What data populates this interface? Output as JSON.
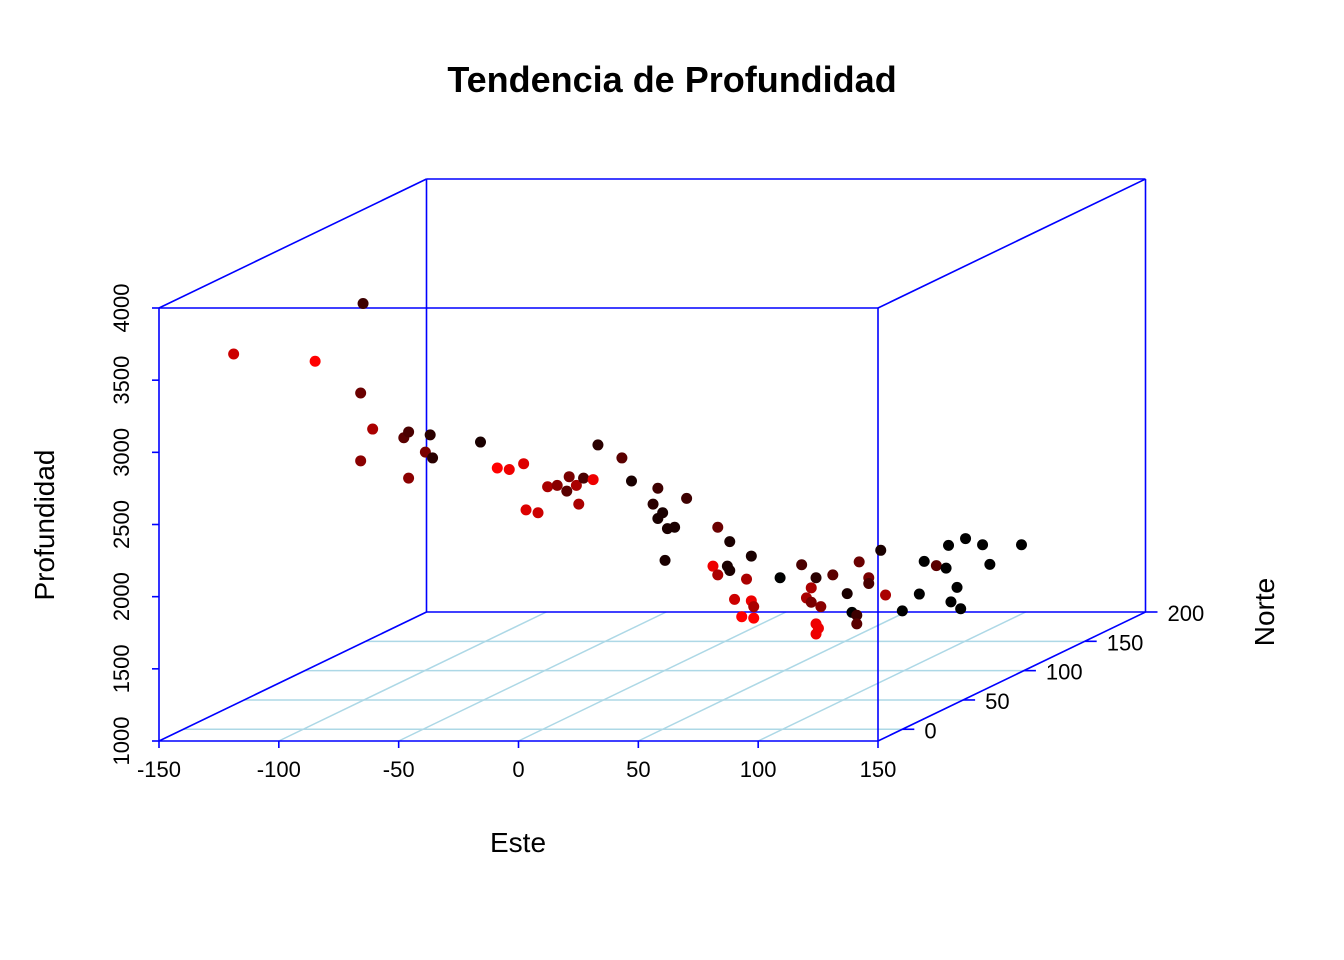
{
  "chart_data": {
    "type": "scatter",
    "title": "Tendencia de Profundidad",
    "xlabel": "Este",
    "ylabel": "Norte",
    "zlabel": "Profundidad",
    "x_ticks": [
      "-150",
      "-100",
      "-50",
      "0",
      "50",
      "100",
      "150"
    ],
    "y_ticks": [
      "0",
      "50",
      "100",
      "150",
      "200"
    ],
    "z_ticks": [
      "1000",
      "1500",
      "2000",
      "2500",
      "3000",
      "3500",
      "4000"
    ],
    "xlim": [
      -150,
      150
    ],
    "ylim": [
      -20,
      200
    ],
    "zlim": [
      1000,
      4000
    ],
    "grid": true,
    "colors": {
      "box": "#0000ff",
      "grid": "#add8e6",
      "points_low": "#000000",
      "points_high": "#ff0000"
    },
    "points": [
      {
        "x": -129,
        "y": 0,
        "z": 3600,
        "c": "#cc0000"
      },
      {
        "x": -95,
        "y": 0,
        "z": 3550,
        "c": "#ff0000"
      },
      {
        "x": -75,
        "y": 0,
        "z": 3950,
        "c": "#3d0000"
      },
      {
        "x": -76,
        "y": 0,
        "z": 3330,
        "c": "#6a0000"
      },
      {
        "x": -71,
        "y": 0,
        "z": 3080,
        "c": "#aa0000"
      },
      {
        "x": -76,
        "y": 0,
        "z": 2860,
        "c": "#8a0000"
      },
      {
        "x": -58,
        "y": 0,
        "z": 3020,
        "c": "#5a0000"
      },
      {
        "x": -56,
        "y": 0,
        "z": 3060,
        "c": "#4a0000"
      },
      {
        "x": -49,
        "y": 0,
        "z": 2920,
        "c": "#7a0000"
      },
      {
        "x": -47,
        "y": 0,
        "z": 3040,
        "c": "#2a0000"
      },
      {
        "x": -46,
        "y": 0,
        "z": 2880,
        "c": "#2a0000"
      },
      {
        "x": -56,
        "y": 0,
        "z": 2740,
        "c": "#8a0000"
      },
      {
        "x": -26,
        "y": 0,
        "z": 2990,
        "c": "#1a0000"
      },
      {
        "x": -19,
        "y": 0,
        "z": 2810,
        "c": "#ff0000"
      },
      {
        "x": -14,
        "y": 0,
        "z": 2800,
        "c": "#ee0000"
      },
      {
        "x": -8,
        "y": 0,
        "z": 2840,
        "c": "#dd0000"
      },
      {
        "x": 2,
        "y": 0,
        "z": 2680,
        "c": "#aa0000"
      },
      {
        "x": 6,
        "y": 0,
        "z": 2690,
        "c": "#8a0000"
      },
      {
        "x": 10,
        "y": 0,
        "z": 2650,
        "c": "#5a0000"
      },
      {
        "x": 11,
        "y": 0,
        "z": 2750,
        "c": "#7a0000"
      },
      {
        "x": 14,
        "y": 0,
        "z": 2690,
        "c": "#aa0000"
      },
      {
        "x": 15,
        "y": 0,
        "z": 2560,
        "c": "#aa0000"
      },
      {
        "x": 17,
        "y": 0,
        "z": 2740,
        "c": "#4a0000"
      },
      {
        "x": 21,
        "y": 0,
        "z": 2730,
        "c": "#ee0000"
      },
      {
        "x": -7,
        "y": 0,
        "z": 2520,
        "c": "#dd0000"
      },
      {
        "x": -2,
        "y": 0,
        "z": 2500,
        "c": "#cc0000"
      },
      {
        "x": 23,
        "y": 0,
        "z": 2970,
        "c": "#2a0000"
      },
      {
        "x": 33,
        "y": 0,
        "z": 2880,
        "c": "#5a0000"
      },
      {
        "x": 37,
        "y": 0,
        "z": 2720,
        "c": "#1a0000"
      },
      {
        "x": 46,
        "y": 0,
        "z": 2560,
        "c": "#2a0000"
      },
      {
        "x": 48,
        "y": 0,
        "z": 2670,
        "c": "#3d0000"
      },
      {
        "x": 48,
        "y": 0,
        "z": 2460,
        "c": "#1a0000"
      },
      {
        "x": 50,
        "y": 0,
        "z": 2500,
        "c": "#1a0000"
      },
      {
        "x": 52,
        "y": 0,
        "z": 2390,
        "c": "#1a0000"
      },
      {
        "x": 55,
        "y": 0,
        "z": 2400,
        "c": "#1a0000"
      },
      {
        "x": 60,
        "y": 0,
        "z": 2600,
        "c": "#3d0000"
      },
      {
        "x": 51,
        "y": 0,
        "z": 2170,
        "c": "#1a0000"
      },
      {
        "x": 73,
        "y": 0,
        "z": 2400,
        "c": "#6a0000"
      },
      {
        "x": 78,
        "y": 0,
        "z": 2300,
        "c": "#1a0000"
      },
      {
        "x": 71,
        "y": 0,
        "z": 2130,
        "c": "#ee0000"
      },
      {
        "x": 73,
        "y": 0,
        "z": 2070,
        "c": "#aa0000"
      },
      {
        "x": 77,
        "y": 0,
        "z": 2130,
        "c": "#1a0000"
      },
      {
        "x": 78,
        "y": 0,
        "z": 2100,
        "c": "#1a0000"
      },
      {
        "x": 80,
        "y": 0,
        "z": 1900,
        "c": "#cc0000"
      },
      {
        "x": 85,
        "y": 0,
        "z": 2040,
        "c": "#aa0000"
      },
      {
        "x": 87,
        "y": 0,
        "z": 2200,
        "c": "#1a0000"
      },
      {
        "x": 83,
        "y": 0,
        "z": 1780,
        "c": "#ff0000"
      },
      {
        "x": 87,
        "y": 0,
        "z": 1890,
        "c": "#ee0000"
      },
      {
        "x": 88,
        "y": 0,
        "z": 1850,
        "c": "#aa0000"
      },
      {
        "x": 88,
        "y": 0,
        "z": 1770,
        "c": "#ff0000"
      },
      {
        "x": 99,
        "y": 0,
        "z": 2050,
        "c": "#000000"
      },
      {
        "x": 108,
        "y": 0,
        "z": 2140,
        "c": "#4a0000"
      },
      {
        "x": 110,
        "y": 0,
        "z": 1910,
        "c": "#aa0000"
      },
      {
        "x": 112,
        "y": 0,
        "z": 1880,
        "c": "#7a0000"
      },
      {
        "x": 112,
        "y": 0,
        "z": 1980,
        "c": "#aa0000"
      },
      {
        "x": 114,
        "y": 0,
        "z": 2050,
        "c": "#2a0000"
      },
      {
        "x": 116,
        "y": 0,
        "z": 1850,
        "c": "#8a0000"
      },
      {
        "x": 114,
        "y": 0,
        "z": 1730,
        "c": "#ee0000"
      },
      {
        "x": 114,
        "y": 0,
        "z": 1660,
        "c": "#ee0000"
      },
      {
        "x": 115,
        "y": 0,
        "z": 1700,
        "c": "#ee0000"
      },
      {
        "x": 121,
        "y": 0,
        "z": 2070,
        "c": "#5a0000"
      },
      {
        "x": 127,
        "y": 0,
        "z": 1940,
        "c": "#1a0000"
      },
      {
        "x": 129,
        "y": 0,
        "z": 1810,
        "c": "#000000"
      },
      {
        "x": 131,
        "y": 0,
        "z": 1790,
        "c": "#3d0000"
      },
      {
        "x": 131,
        "y": 0,
        "z": 1730,
        "c": "#5a0000"
      },
      {
        "x": 132,
        "y": 0,
        "z": 2160,
        "c": "#6a0000"
      },
      {
        "x": 136,
        "y": 0,
        "z": 2050,
        "c": "#7a0000"
      },
      {
        "x": 136,
        "y": 0,
        "z": 2010,
        "c": "#4a0000"
      },
      {
        "x": 141,
        "y": 0,
        "z": 2240,
        "c": "#1a0000"
      },
      {
        "x": 143,
        "y": 0,
        "z": 1930,
        "c": "#aa0000"
      },
      {
        "x": 150,
        "y": 0,
        "z": 1820,
        "c": "#000000"
      },
      {
        "x": 150,
        "y": 18,
        "z": 2090,
        "c": "#000000"
      },
      {
        "x": 150,
        "y": 14,
        "z": 1880,
        "c": "#000000"
      },
      {
        "x": 150,
        "y": 28,
        "z": 2020,
        "c": "#5a0000"
      },
      {
        "x": 150,
        "y": 36,
        "z": 1970,
        "c": "#000000"
      },
      {
        "x": 150,
        "y": 38,
        "z": 2120,
        "c": "#000000"
      },
      {
        "x": 150,
        "y": 52,
        "z": 2110,
        "c": "#000000"
      },
      {
        "x": 150,
        "y": 66,
        "z": 2010,
        "c": "#000000"
      },
      {
        "x": 150,
        "y": 72,
        "z": 1850,
        "c": "#000000"
      },
      {
        "x": 150,
        "y": 98,
        "z": 1880,
        "c": "#000000"
      },
      {
        "x": 150,
        "y": 40,
        "z": 1720,
        "c": "#000000"
      },
      {
        "x": 150,
        "y": 45,
        "z": 1800,
        "c": "#000000"
      },
      {
        "x": 150,
        "y": 48,
        "z": 1640,
        "c": "#000000"
      }
    ]
  }
}
